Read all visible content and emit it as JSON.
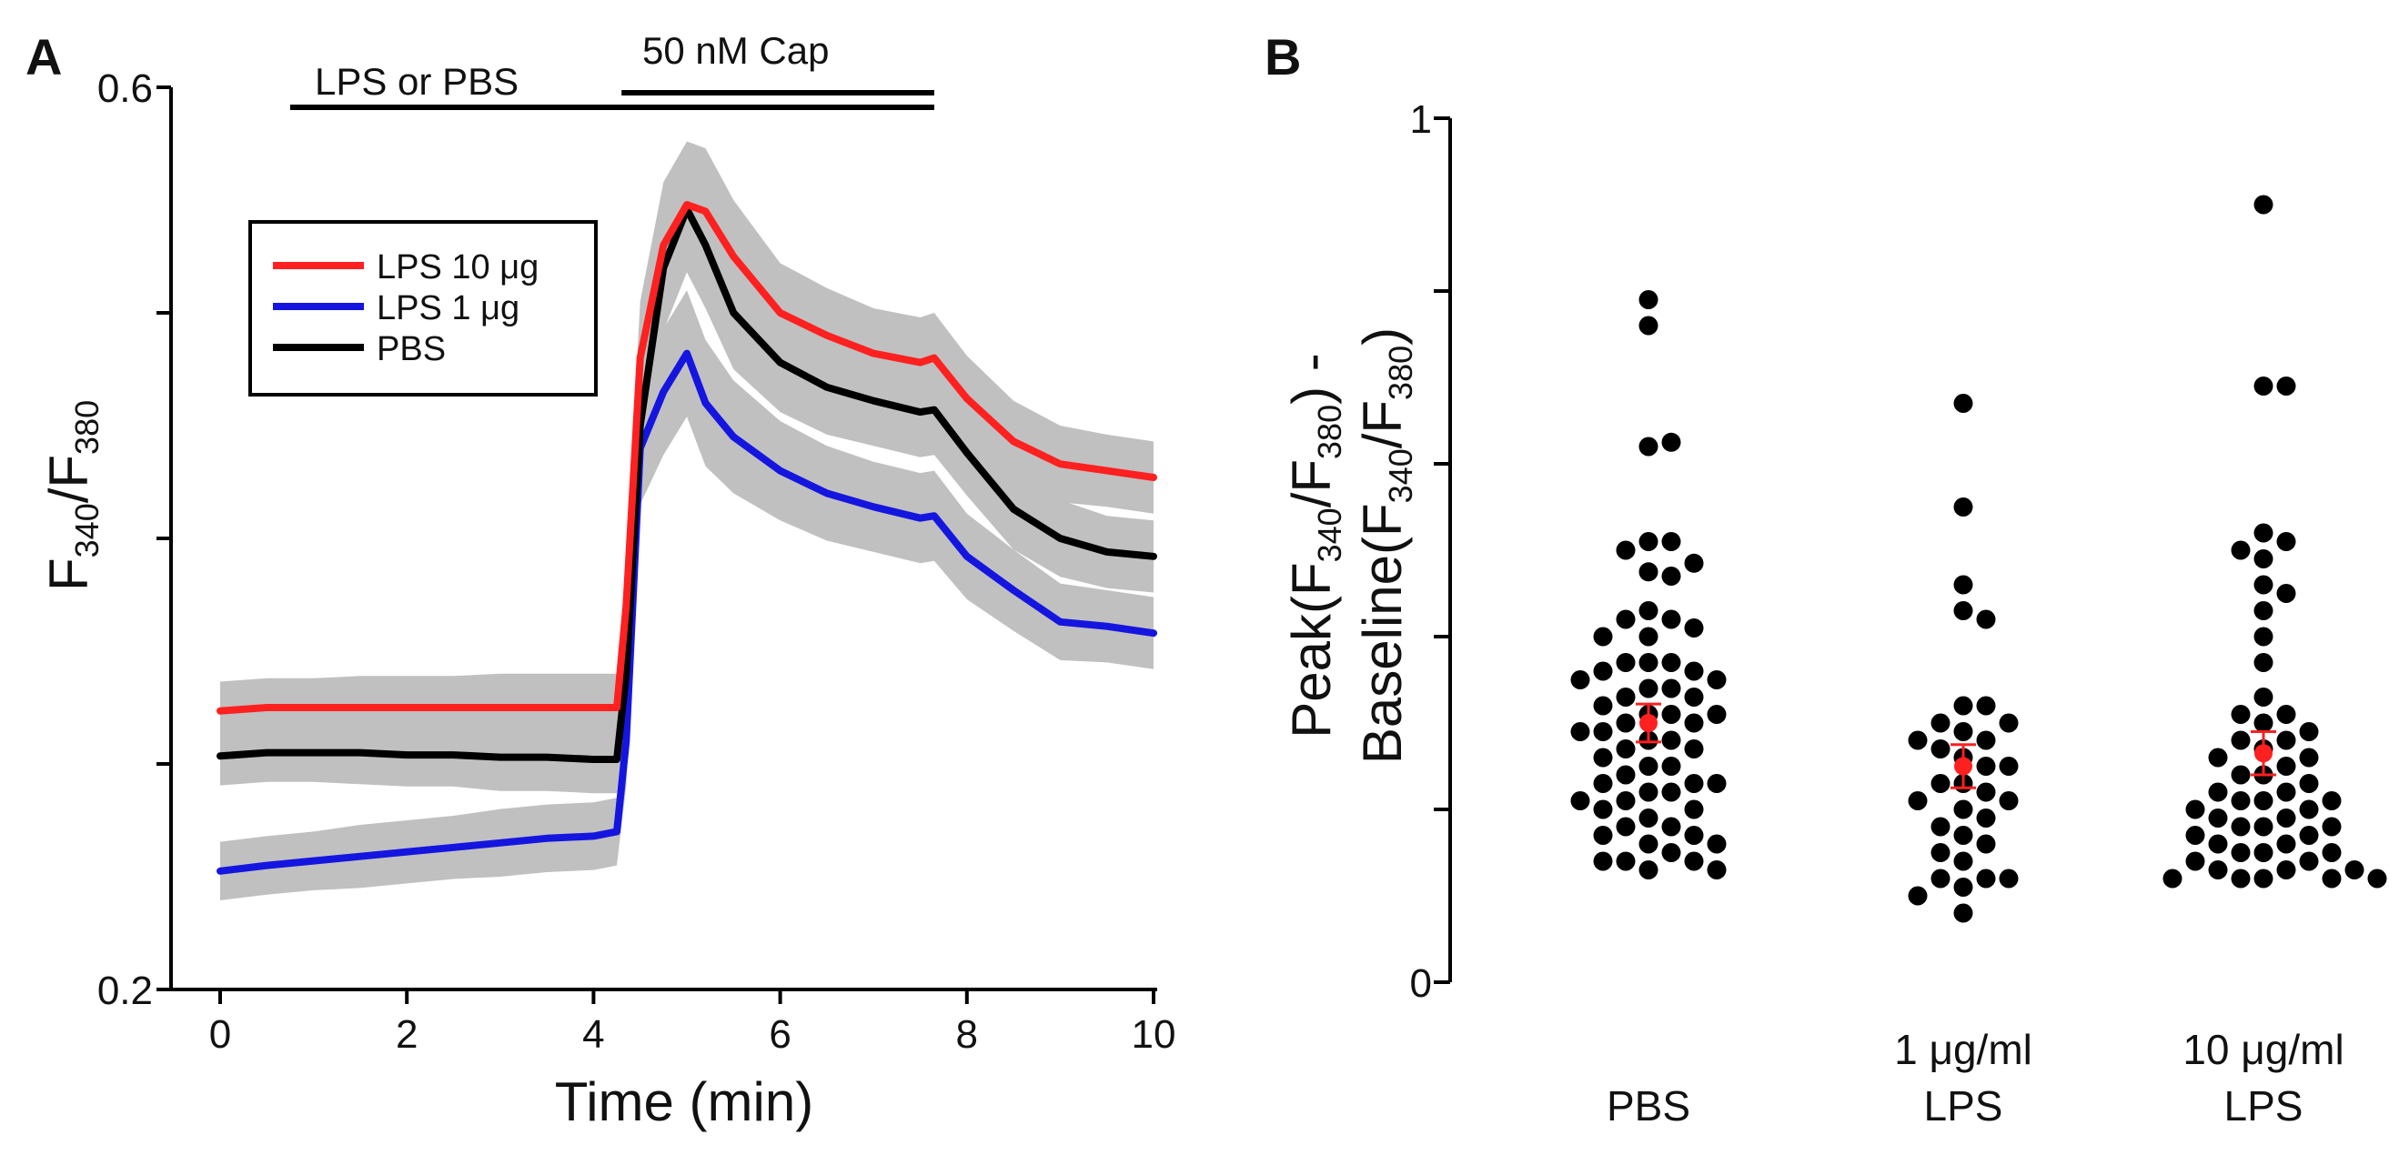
{
  "chart_data": [
    {
      "panel": "A",
      "type": "line",
      "title": "",
      "xlabel": "Time (min)",
      "ylabel_main": "F",
      "ylabel_sub1": "340",
      "ylabel_slash": "/F",
      "ylabel_sub2": "380",
      "xlim": [
        -0.5,
        10
      ],
      "ylim": [
        0.2,
        0.6
      ],
      "x_ticks": [
        0,
        2,
        4,
        6,
        8,
        10
      ],
      "x_tick_labels": [
        "0",
        "2",
        "4",
        "6",
        "8",
        "10"
      ],
      "y_tick_labels": {
        "min": "0.2",
        "max": "0.6"
      },
      "y_ticks_minor": [
        0.3,
        0.4,
        0.5
      ],
      "conditions": [
        {
          "label": "LPS or PBS",
          "start": 0.75,
          "end": 7.65
        },
        {
          "label": "50 nM Cap",
          "start": 4.3,
          "end": 7.65
        }
      ],
      "legend": {
        "position": "upper-left",
        "entries": [
          "LPS 10 μg",
          "LPS 1 μg",
          "PBS"
        ]
      },
      "x": [
        0,
        0.5,
        1,
        1.5,
        2,
        2.5,
        3,
        3.5,
        4,
        4.25,
        4.35,
        4.5,
        4.75,
        5.0,
        5.2,
        5.5,
        6.0,
        6.5,
        7.0,
        7.5,
        7.65,
        8.0,
        8.5,
        9.0,
        9.5,
        10
      ],
      "series": [
        {
          "name": "LPS 10 μg",
          "color": "#ff2020",
          "values": [
            0.3235,
            0.325,
            0.325,
            0.325,
            0.325,
            0.325,
            0.325,
            0.325,
            0.325,
            0.325,
            0.37,
            0.48,
            0.53,
            0.548,
            0.545,
            0.525,
            0.5,
            0.49,
            0.482,
            0.478,
            0.48,
            0.462,
            0.443,
            0.433,
            0.43,
            0.427
          ]
        },
        {
          "name": "LPS 1 μg",
          "color": "#1515e0",
          "values": [
            0.2525,
            0.255,
            0.257,
            0.259,
            0.261,
            0.263,
            0.265,
            0.267,
            0.268,
            0.27,
            0.31,
            0.44,
            0.465,
            0.482,
            0.46,
            0.445,
            0.43,
            0.42,
            0.414,
            0.409,
            0.41,
            0.392,
            0.377,
            0.363,
            0.361,
            0.358
          ]
        },
        {
          "name": "PBS",
          "color": "#000000",
          "values": [
            0.3035,
            0.305,
            0.305,
            0.305,
            0.304,
            0.304,
            0.303,
            0.303,
            0.302,
            0.302,
            0.34,
            0.45,
            0.52,
            0.546,
            0.53,
            0.5,
            0.478,
            0.467,
            0.461,
            0.456,
            0.457,
            0.438,
            0.413,
            0.4,
            0.394,
            0.392
          ]
        }
      ],
      "error_band": {
        "color": "#c0c0c0",
        "half_width": [
          0.013,
          0.013,
          0.013,
          0.014,
          0.014,
          0.014,
          0.015,
          0.015,
          0.015,
          0.015,
          0.02,
          0.025,
          0.028,
          0.028,
          0.028,
          0.025,
          0.022,
          0.021,
          0.02,
          0.02,
          0.02,
          0.019,
          0.018,
          0.017,
          0.016,
          0.016
        ]
      }
    },
    {
      "panel": "B",
      "type": "scatter",
      "title": "",
      "xlabel": "",
      "ylabel_line1": {
        "pre": "Peak(F",
        "sub1": "340",
        "mid": "/F",
        "sub2": "380",
        "post": ") -"
      },
      "ylabel_line2": {
        "pre": "Baseline(F",
        "sub1": "340",
        "mid": "/F",
        "sub2": "380",
        "post": ")"
      },
      "ylim": [
        0,
        1
      ],
      "y_tick_labels": {
        "min": "0",
        "max": "1"
      },
      "y_ticks_minor": [
        0.2,
        0.4,
        0.6,
        0.8
      ],
      "categories": [
        {
          "label_line1": "",
          "label_line2": "PBS"
        },
        {
          "label_line1": "1 μg/ml",
          "label_line2": "LPS"
        },
        {
          "label_line1": "10 μg/ml",
          "label_line2": "LPS"
        }
      ],
      "points": [
        [
          0.79,
          0.76,
          0.62,
          0.625,
          0.51,
          0.51,
          0.5,
          0.485,
          0.475,
          0.47,
          0.43,
          0.42,
          0.42,
          0.41,
          0.4,
          0.4,
          0.37,
          0.37,
          0.37,
          0.36,
          0.36,
          0.35,
          0.35,
          0.34,
          0.34,
          0.33,
          0.33,
          0.32,
          0.31,
          0.31,
          0.31,
          0.3,
          0.3,
          0.29,
          0.29,
          0.28,
          0.28,
          0.27,
          0.27,
          0.26,
          0.25,
          0.25,
          0.24,
          0.23,
          0.23,
          0.23,
          0.22,
          0.22,
          0.21,
          0.21,
          0.2,
          0.2,
          0.19,
          0.18,
          0.18,
          0.17,
          0.17,
          0.16,
          0.16,
          0.15,
          0.14,
          0.14,
          0.14,
          0.13,
          0.13
        ],
        [
          0.67,
          0.55,
          0.46,
          0.43,
          0.42,
          0.32,
          0.32,
          0.3,
          0.3,
          0.29,
          0.28,
          0.28,
          0.27,
          0.26,
          0.25,
          0.25,
          0.23,
          0.23,
          0.22,
          0.21,
          0.21,
          0.2,
          0.19,
          0.18,
          0.17,
          0.16,
          0.15,
          0.14,
          0.12,
          0.12,
          0.12,
          0.11,
          0.1,
          0.08
        ],
        [
          0.9,
          0.69,
          0.69,
          0.52,
          0.51,
          0.5,
          0.49,
          0.46,
          0.45,
          0.43,
          0.4,
          0.37,
          0.33,
          0.31,
          0.31,
          0.3,
          0.29,
          0.28,
          0.28,
          0.27,
          0.26,
          0.26,
          0.25,
          0.24,
          0.24,
          0.23,
          0.22,
          0.22,
          0.21,
          0.21,
          0.21,
          0.2,
          0.2,
          0.19,
          0.19,
          0.18,
          0.18,
          0.18,
          0.17,
          0.17,
          0.16,
          0.16,
          0.15,
          0.15,
          0.15,
          0.14,
          0.14,
          0.13,
          0.13,
          0.13,
          0.12,
          0.12,
          0.12,
          0.12,
          0.12
        ]
      ],
      "means": [
        0.3,
        0.25,
        0.265
      ],
      "errors": [
        0.022,
        0.025,
        0.025
      ],
      "mean_color": "#ff2020"
    }
  ]
}
